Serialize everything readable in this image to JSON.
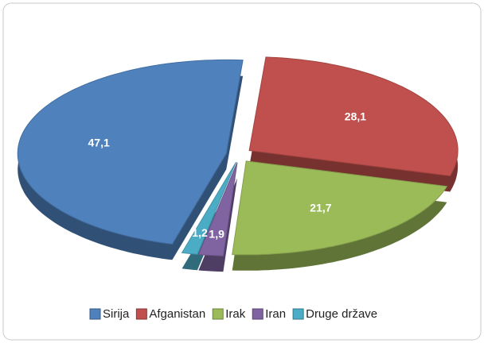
{
  "chart_data": {
    "type": "pie",
    "categories": [
      "Sirija",
      "Afganistan",
      "Irak",
      "Iran",
      "Druge države"
    ],
    "values": [
      47.1,
      28.1,
      21.7,
      1.9,
      1.2
    ],
    "value_labels": [
      "47,1",
      "28,1",
      "21,7",
      "1,9",
      "1,2"
    ],
    "colors": [
      "#4f81bd",
      "#c0504d",
      "#9bbb59",
      "#8064a2",
      "#4bacc6"
    ],
    "legend": "bottom"
  }
}
